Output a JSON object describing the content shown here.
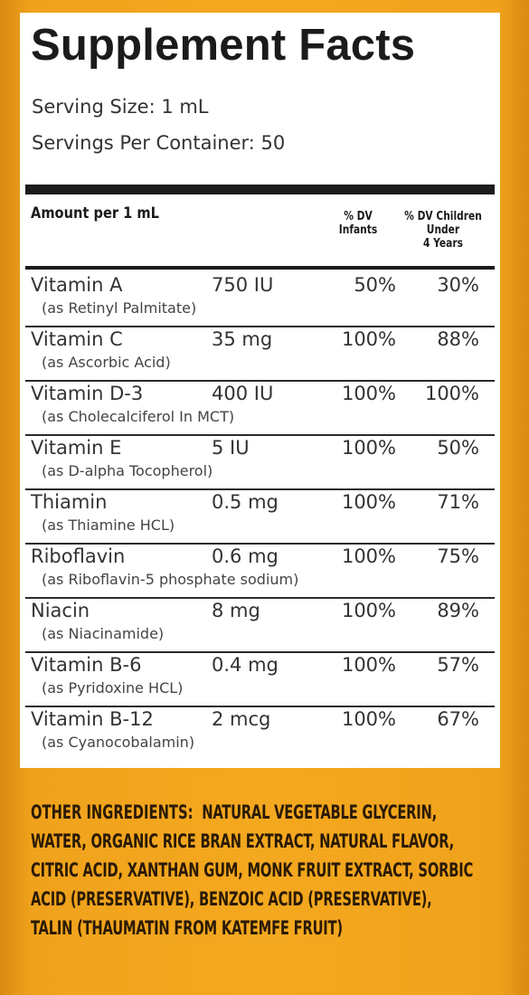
{
  "title": "Supplement Facts",
  "serving_size": "Serving Size: 1 mL",
  "servings_per_container": "Servings Per Container: 50",
  "amount_header": "Amount per 1 mL",
  "dv_infants_header": [
    "% DV",
    "Infants"
  ],
  "dv_children_header": [
    "% DV Children",
    "Under",
    "4 Years"
  ],
  "nutrients": [
    {
      "name": "Vitamin A",
      "amount": "750 IU",
      "dv_infants": "50%",
      "dv_children": "30%",
      "source": "(as Retinyl Palmitate)"
    },
    {
      "name": "Vitamin C",
      "amount": "35 mg",
      "dv_infants": "100%",
      "dv_children": "88%",
      "source": "(as Ascorbic Acid)"
    },
    {
      "name": "Vitamin D-3",
      "amount": "400 IU",
      "dv_infants": "100%",
      "dv_children": "100%",
      "source": "(as Cholecalciferol In MCT)"
    },
    {
      "name": "Vitamin E",
      "amount": "5 IU",
      "dv_infants": "100%",
      "dv_children": "50%",
      "source": "(as D-alpha Tocopherol)"
    },
    {
      "name": "Thiamin",
      "amount": "0.5 mg",
      "dv_infants": "100%",
      "dv_children": "71%",
      "source": "(as Thiamine HCL)"
    },
    {
      "name": "Riboflavin",
      "amount": "0.6 mg",
      "dv_infants": "100%",
      "dv_children": "75%",
      "source": "(as Riboflavin-5 phosphate sodium)"
    },
    {
      "name": "Niacin",
      "amount": "8 mg",
      "dv_infants": "100%",
      "dv_children": "89%",
      "source": "(as Niacinamide)"
    },
    {
      "name": "Vitamin B-6",
      "amount": "0.4 mg",
      "dv_infants": "100%",
      "dv_children": "57%",
      "source": "(as Pyridoxine HCL)"
    },
    {
      "name": "Vitamin B-12",
      "amount": "2 mcg",
      "dv_infants": "100%",
      "dv_children": "67%",
      "source": "(as Cyanocobalamin)"
    }
  ],
  "other_ingredients_label": "OTHER INGREDIENTS:",
  "other_ingredients_lines": [
    "NATURAL VEGETABLE GLYCERIN,",
    "WATER, ORGANIC RICE BRAN EXTRACT, NATURAL FLAVOR,",
    "CITRIC ACID, XANTHAN GUM, MONK FRUIT EXTRACT, SORBIC",
    "ACID (PRESERVATIVE), BENZOIC ACID (PRESERVATIVE),",
    "TALIN (THAUMATIN FROM KATEMFE FRUIT)"
  ],
  "colors": {
    "background": "#f4a81f",
    "panel": "#ffffff",
    "ink": "#1b1b1b"
  }
}
